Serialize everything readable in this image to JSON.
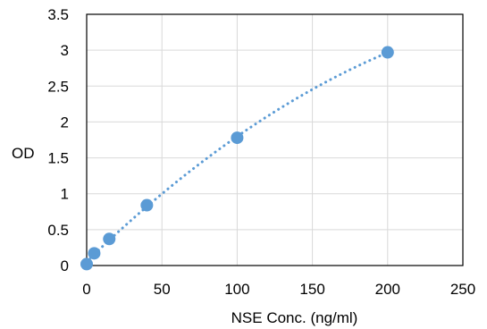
{
  "chart_data": {
    "type": "scatter",
    "title": "",
    "xlabel": "NSE Conc. (ng/ml)",
    "ylabel": "OD",
    "xlim": [
      0,
      250
    ],
    "ylim": [
      0,
      3.5
    ],
    "x_ticks": [
      "0",
      "50",
      "100",
      "150",
      "200",
      "250"
    ],
    "y_ticks": [
      "0",
      "0.5",
      "1",
      "1.5",
      "2",
      "2.5",
      "3",
      "3.5"
    ],
    "grid": true,
    "legend": "none",
    "series": [
      {
        "x": [
          0,
          5,
          15,
          40,
          100,
          200
        ],
        "y": [
          0.02,
          0.17,
          0.37,
          0.84,
          1.78,
          2.97
        ],
        "color": "#5B9BD5",
        "trendline": "polynomial, dotted"
      }
    ]
  }
}
